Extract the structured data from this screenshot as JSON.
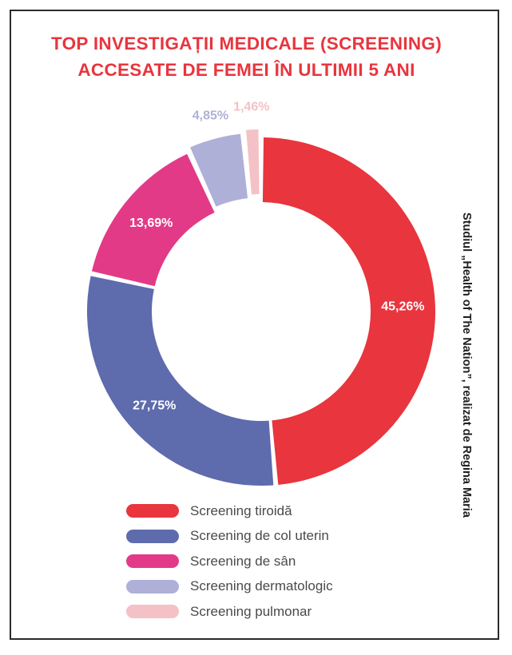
{
  "title_lines": [
    "TOP INVESTIGAȚII MEDICALE (SCREENING)",
    "ACCESATE DE FEMEI ÎN ULTIMII 5 ANI"
  ],
  "side_note": "Studiul „Health of The Nation”, realizat de Regina Maria",
  "colors": {
    "title": "#e8353e",
    "tiroida": "#e8353e",
    "col_uterin": "#5e6bad",
    "san": "#e23a86",
    "dermatologic": "#aeb0d8",
    "pulmonar": "#f4c1c6"
  },
  "chart_data": {
    "type": "pie",
    "donut": true,
    "title": "TOP INVESTIGAȚII MEDICALE (SCREENING) ACCESATE DE FEMEI ÎN ULTIMII 5 ANI",
    "categories": [
      "Screening tiroidă",
      "Screening de col uterin",
      "Screening de sân",
      "Screening dermatologic",
      "Screening pulmonar"
    ],
    "values": [
      45.26,
      27.75,
      13.69,
      4.85,
      1.46
    ],
    "labels": [
      "45,26%",
      "27,75%",
      "13,69%",
      "4,85%",
      "1,46%"
    ],
    "legend_position": "bottom"
  },
  "legend": [
    {
      "label": "Screening tiroidă",
      "color": "#e8353e"
    },
    {
      "label": "Screening de col uterin",
      "color": "#5e6bad"
    },
    {
      "label": "Screening de sân",
      "color": "#e23a86"
    },
    {
      "label": "Screening dermatologic",
      "color": "#aeb0d8"
    },
    {
      "label": "Screening pulmonar",
      "color": "#f4c1c6"
    }
  ]
}
